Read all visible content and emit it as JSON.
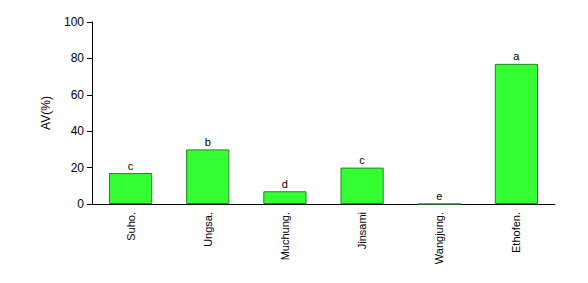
{
  "chart_data": {
    "type": "bar",
    "y_label": "AV(%)",
    "categories": [
      "Suho.",
      "Ungsa.",
      "Muchung.",
      "Jinsami",
      "Wangjung.",
      "Ethofen."
    ],
    "values": [
      17,
      30,
      7,
      20,
      0,
      77
    ],
    "annotations": [
      "c",
      "b",
      "d",
      "c",
      "e",
      "a"
    ],
    "color": "#33ff33",
    "ylim": [
      0,
      100
    ],
    "yticks": [
      0,
      20,
      40,
      60,
      80,
      100
    ],
    "grid": false
  }
}
